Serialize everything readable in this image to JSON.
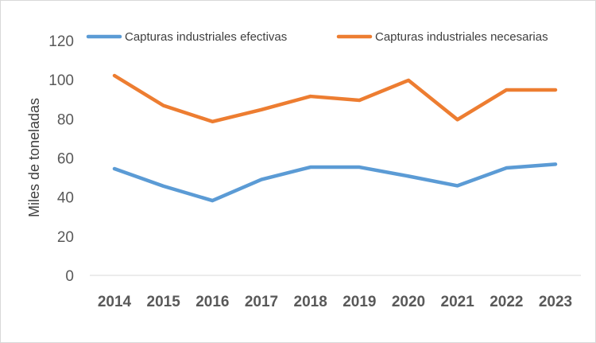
{
  "chart_data": {
    "type": "line",
    "title": "",
    "xlabel": "",
    "ylabel": "Miles de toneladas",
    "ylim": [
      0,
      120
    ],
    "yticks": [
      0,
      20,
      40,
      60,
      80,
      100,
      120
    ],
    "grid": false,
    "legend_position": "top",
    "categories": [
      "2014",
      "2015",
      "2016",
      "2017",
      "2018",
      "2019",
      "2020",
      "2021",
      "2022",
      "2023"
    ],
    "series": [
      {
        "name": "Capturas industriales efectivas",
        "color": "#5B9BD5",
        "values": [
          54.5,
          45.6,
          38.2,
          49.0,
          55.3,
          55.3,
          50.7,
          45.8,
          54.9,
          56.8
        ]
      },
      {
        "name": "Capturas industriales necesarias",
        "color": "#ED7D31",
        "values": [
          102.1,
          86.8,
          78.6,
          84.7,
          91.5,
          89.5,
          99.7,
          79.6,
          94.8,
          94.8
        ]
      }
    ]
  }
}
